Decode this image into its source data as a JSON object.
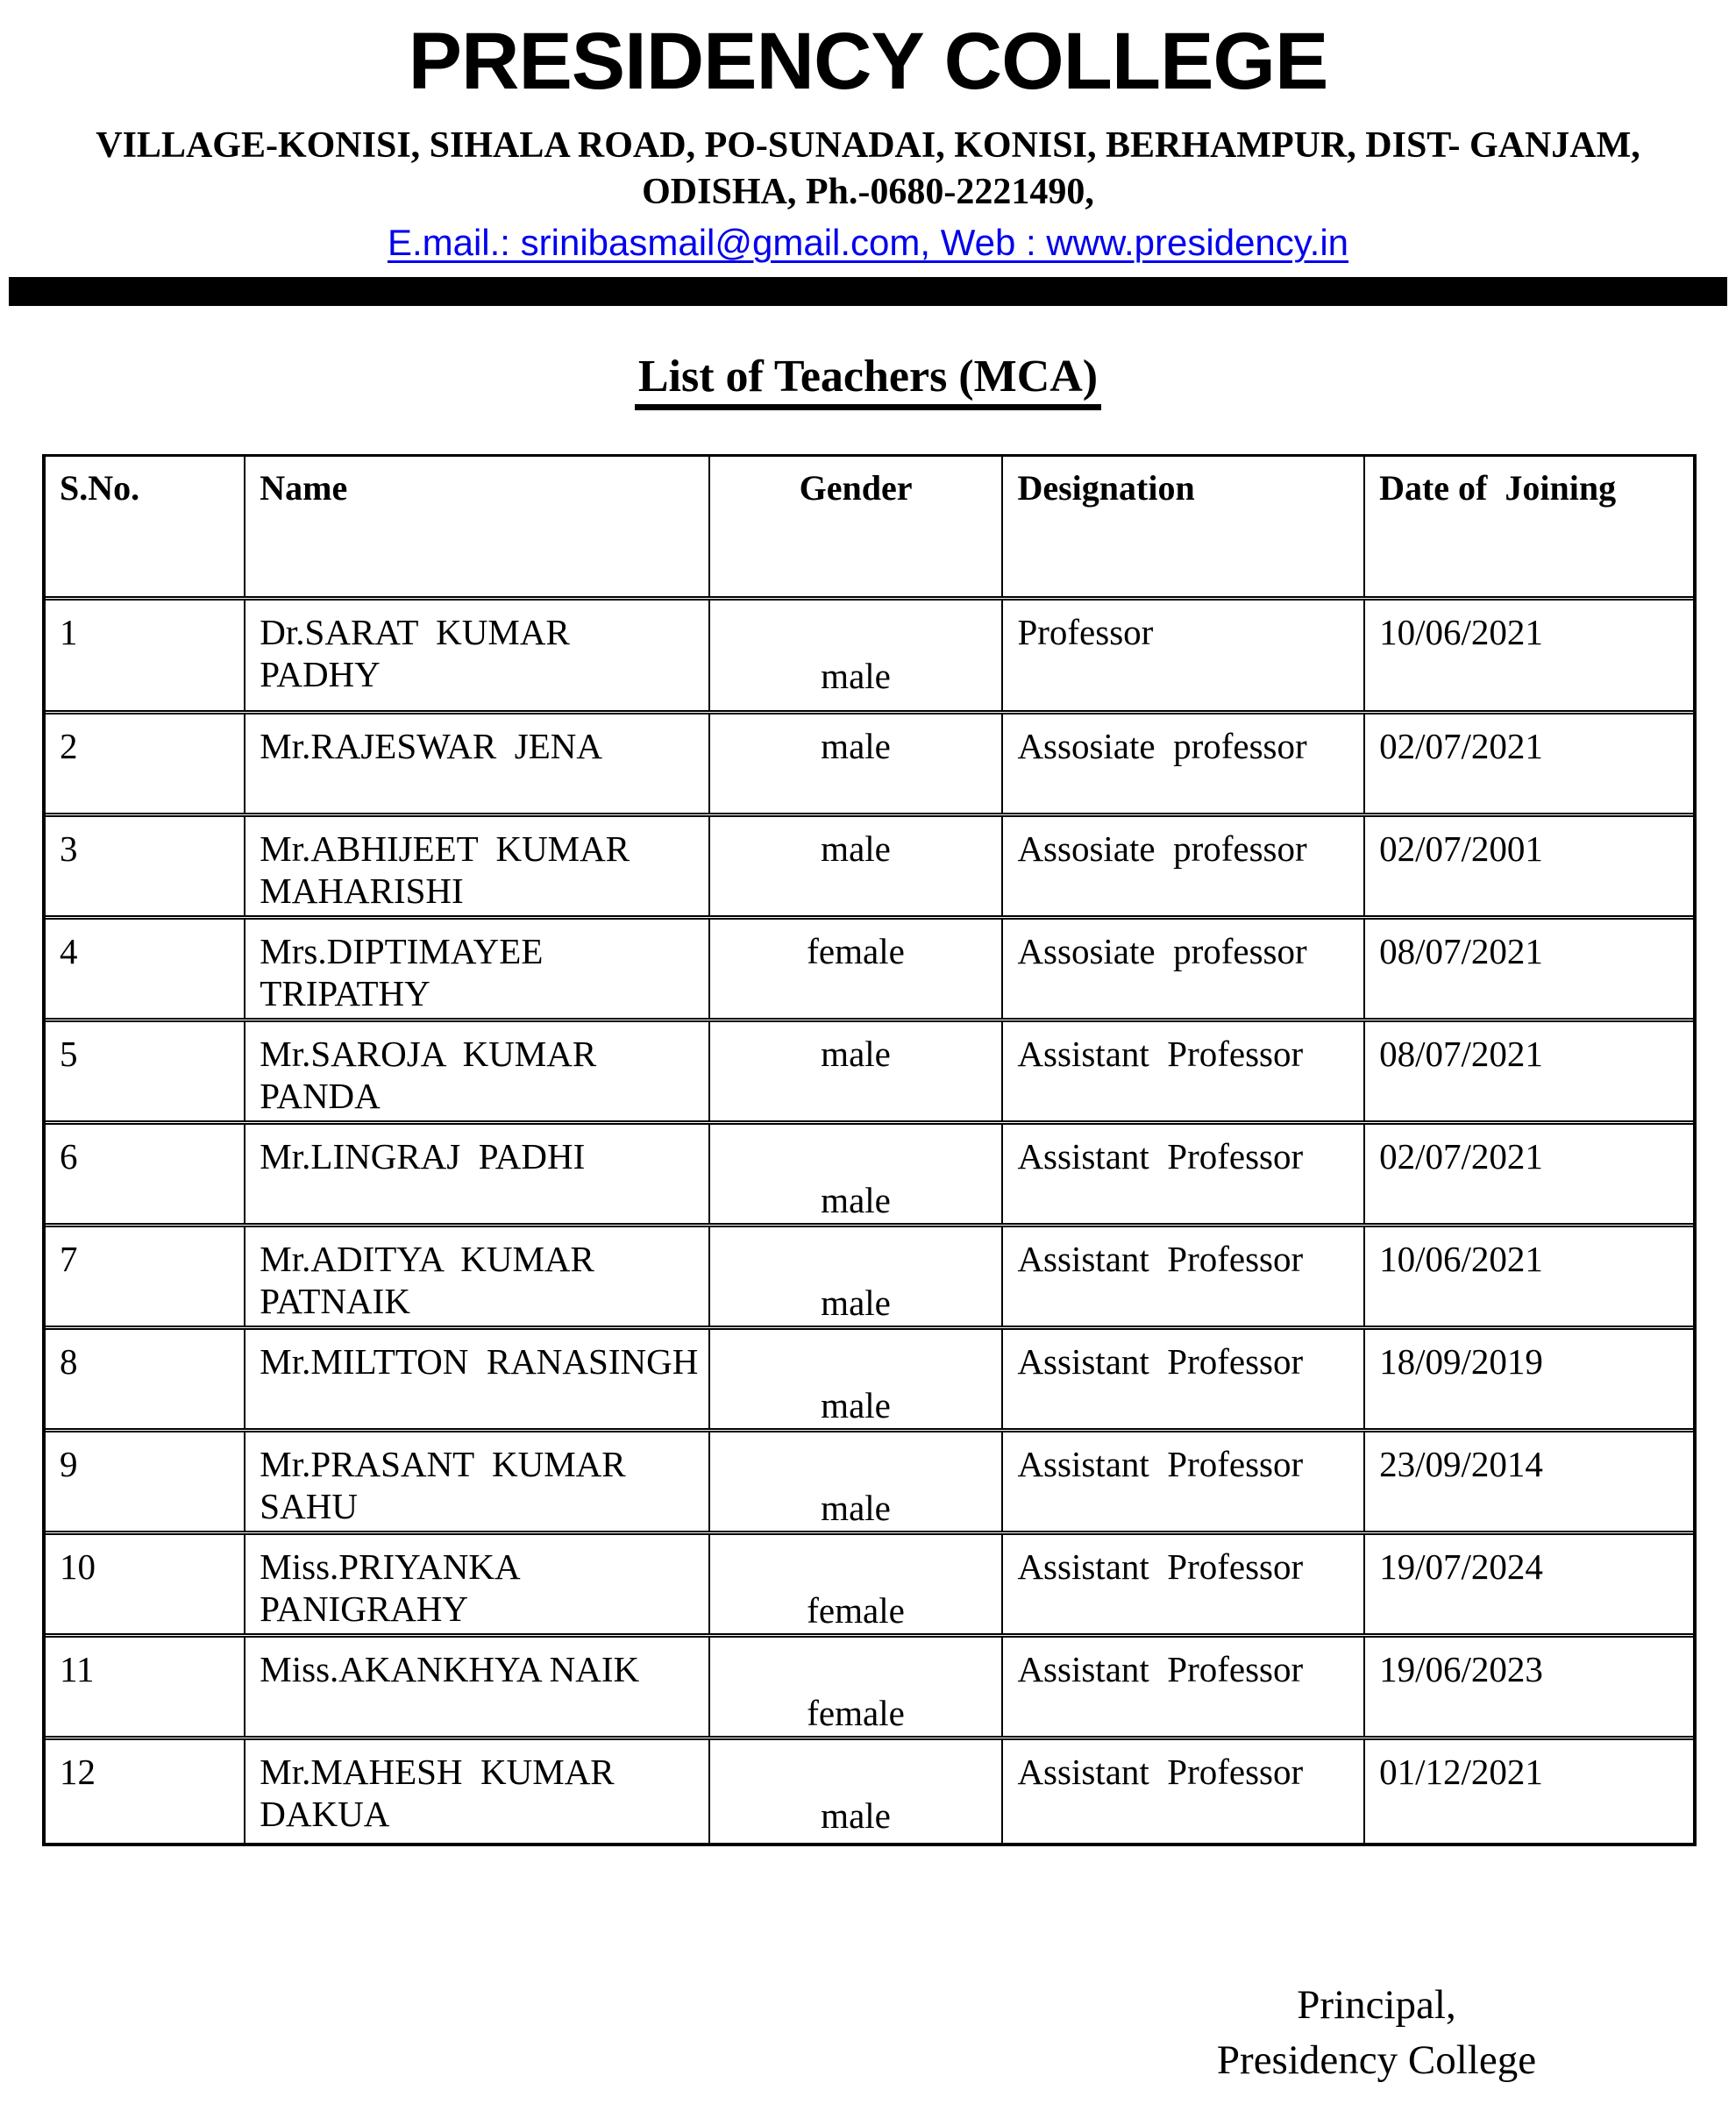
{
  "header": {
    "college_name": "PRESIDENCY COLLEGE",
    "address_line1": "VILLAGE-KONISI, SIHALA ROAD, PO-SUNADAI, KONISI, BERHAMPUR, DIST- GANJAM,",
    "address_line2": "ODISHA, Ph.-0680-2221490,",
    "contact_line": "E.mail.: srinibasmail@gmail.com, Web : www.presidency.in"
  },
  "document": {
    "title": "List of Teachers (MCA)"
  },
  "table": {
    "columns": [
      "S.No.",
      "Name",
      "Gender",
      "Designation",
      "Date of  Joining"
    ],
    "rows": [
      {
        "sno": "1",
        "name": "Dr.SARAT  KUMAR  PADHY",
        "gender": "male",
        "designation": "Professor",
        "date_of_joining": "10/06/2021"
      },
      {
        "sno": "2",
        "name": "Mr.RAJESWAR  JENA",
        "gender": "male",
        "designation": "Assosiate  professor",
        "date_of_joining": "02/07/2021"
      },
      {
        "sno": "3",
        "name": "Mr.ABHIJEET  KUMAR\nMAHARISHI",
        "gender": "male",
        "designation": "Assosiate  professor",
        "date_of_joining": "02/07/2001"
      },
      {
        "sno": "4",
        "name": "Mrs.DIPTIMAYEE\nTRIPATHY",
        "gender": "female",
        "designation": "Assosiate  professor",
        "date_of_joining": "08/07/2021"
      },
      {
        "sno": "5",
        "name": "Mr.SAROJA  KUMAR\nPANDA",
        "gender": "male",
        "designation": "Assistant  Professor",
        "date_of_joining": "08/07/2021"
      },
      {
        "sno": "6",
        "name": "Mr.LINGRAJ  PADHI",
        "gender": "male",
        "designation": "Assistant  Professor",
        "date_of_joining": "02/07/2021"
      },
      {
        "sno": "7",
        "name": "Mr.ADITYA  KUMAR\nPATNAIK",
        "gender": "male",
        "designation": "Assistant  Professor",
        "date_of_joining": "10/06/2021"
      },
      {
        "sno": "8",
        "name": "Mr.MILTTON  RANASINGH",
        "gender": "male",
        "designation": "Assistant  Professor",
        "date_of_joining": "18/09/2019"
      },
      {
        "sno": "9",
        "name": "Mr.PRASANT  KUMAR\nSAHU",
        "gender": "male",
        "designation": "Assistant  Professor",
        "date_of_joining": "23/09/2014"
      },
      {
        "sno": "10",
        "name": "Miss.PRIYANKA\nPANIGRAHY",
        "gender": "female",
        "designation": "Assistant  Professor",
        "date_of_joining": "19/07/2024"
      },
      {
        "sno": "11",
        "name": "Miss.AKANKHYA NAIK",
        "gender": "female",
        "designation": "Assistant  Professor",
        "date_of_joining": "19/06/2023"
      },
      {
        "sno": "12",
        "name": "Mr.MAHESH  KUMAR\nDAKUA",
        "gender": "male",
        "designation": "Assistant  Professor",
        "date_of_joining": "01/12/2021"
      }
    ]
  },
  "footer": {
    "signatory_title": "Principal,",
    "signatory_org": "Presidency College"
  },
  "colors": {
    "text": "#000000",
    "link_blue": "#0000EE",
    "divider_bar": "#000000"
  }
}
